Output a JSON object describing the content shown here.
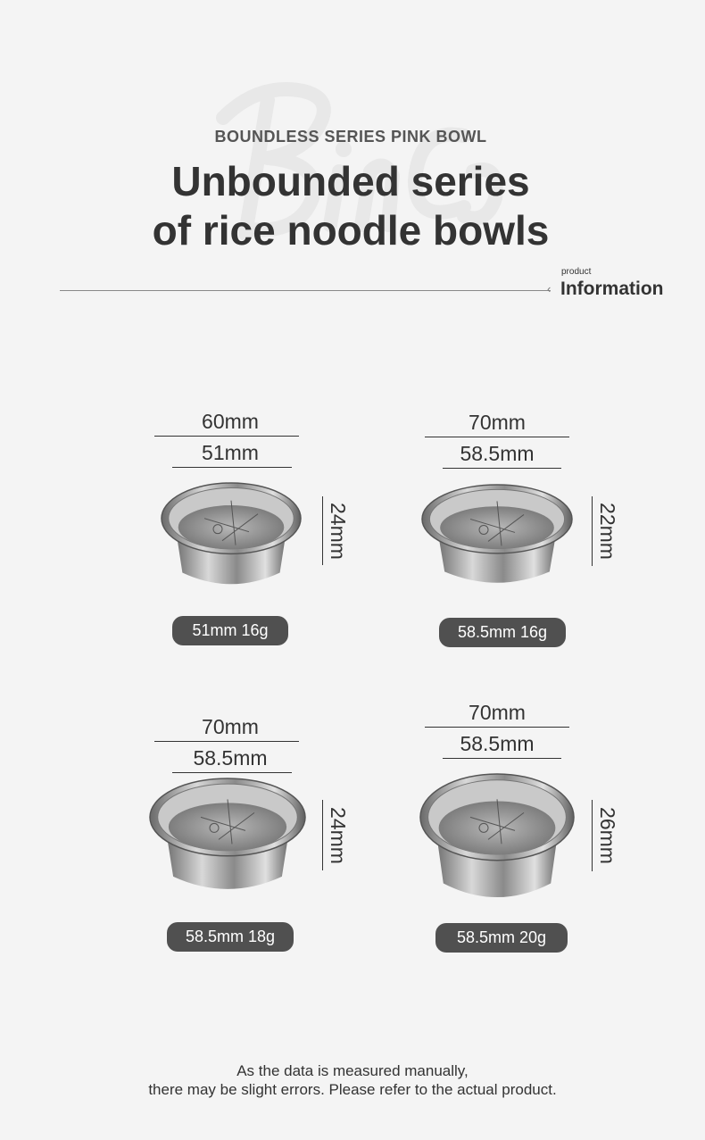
{
  "header": {
    "watermark": "Binco",
    "subtitle": "BOUNDLESS SERIES PINK BOWL",
    "title_line1": "Unbounded series",
    "title_line2": "of rice noodle bowls",
    "section_small": "product",
    "section_big": "Information"
  },
  "products": [
    {
      "outer": "60mm",
      "inner": "51mm",
      "height": "24mm",
      "label": "51mm 16g"
    },
    {
      "outer": "70mm",
      "inner": "58.5mm",
      "height": "22mm",
      "label": "58.5mm 16g"
    },
    {
      "outer": "70mm",
      "inner": "58.5mm",
      "height": "24mm",
      "label": "58.5mm 18g"
    },
    {
      "outer": "70mm",
      "inner": "58.5mm",
      "height": "26mm",
      "label": "58.5mm 20g"
    }
  ],
  "footer": {
    "line1": "As the data is measured manually,",
    "line2": "there may be slight errors. Please refer to the actual product."
  }
}
